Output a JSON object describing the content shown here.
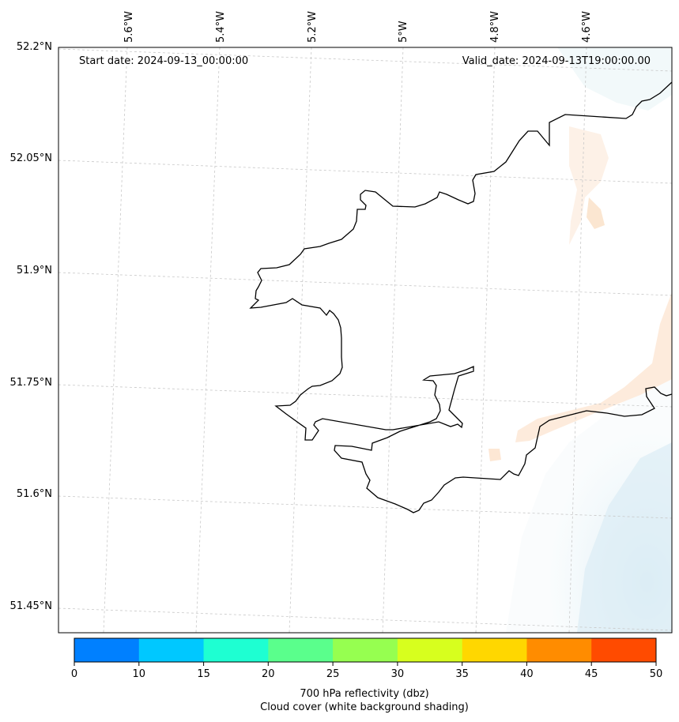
{
  "map": {
    "start_date": "Start date: 2024-09-13_00:00:00",
    "valid_date": "Valid_date: 2024-09-13T19:00:00.00",
    "lat_labels": [
      "52.2°N",
      "52.05°N",
      "51.9°N",
      "51.75°N",
      "51.6°N",
      "51.45°N"
    ],
    "lon_labels": [
      "5.6°W",
      "5.4°W",
      "5.2°W",
      "5°W",
      "4.8°W",
      "4.6°W"
    ]
  },
  "colorbar": {
    "ticks": [
      "0",
      "10",
      "15",
      "20",
      "25",
      "30",
      "35",
      "40",
      "45",
      "50"
    ],
    "colors": [
      "#0080ff",
      "#00c8ff",
      "#1effd2",
      "#5aff8c",
      "#96ff50",
      "#d7ff1e",
      "#ffd700",
      "#ff8c00",
      "#ff4b00"
    ],
    "label_line1": "700 hPa reflectivity (dbz)",
    "label_line2": "Cloud cover (white background shading)"
  }
}
